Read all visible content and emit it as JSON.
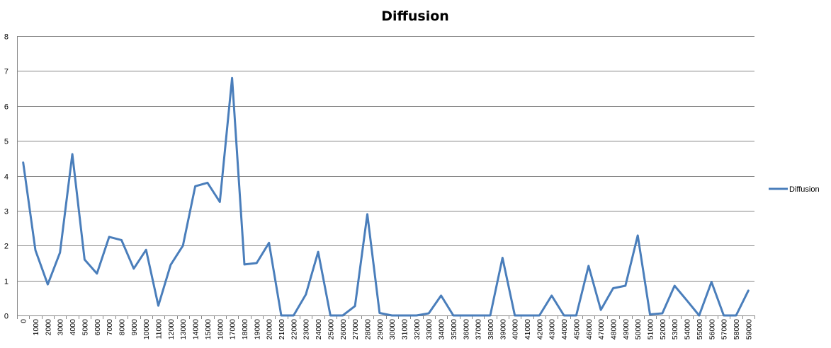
{
  "chart_data": {
    "type": "line",
    "title": "Diffusion",
    "xlabel": "",
    "ylabel": "",
    "ylim": [
      0,
      8
    ],
    "yticks": [
      0,
      1,
      2,
      3,
      4,
      5,
      6,
      7,
      8
    ],
    "grid": true,
    "legend_position": "right",
    "categories": [
      "0",
      "1000",
      "2000",
      "3000",
      "4000",
      "5000",
      "6000",
      "7000",
      "8000",
      "9000",
      "10000",
      "11000",
      "12000",
      "13000",
      "14000",
      "15000",
      "16000",
      "17000",
      "18000",
      "19000",
      "20000",
      "21000",
      "22000",
      "23000",
      "24000",
      "25000",
      "26000",
      "27000",
      "28000",
      "29000",
      "30000",
      "31000",
      "32000",
      "33000",
      "34000",
      "35000",
      "36000",
      "37000",
      "38000",
      "39000",
      "40000",
      "41000",
      "42000",
      "43000",
      "44000",
      "45000",
      "46000",
      "47000",
      "48000",
      "49000",
      "50000",
      "51000",
      "52000",
      "53000",
      "54000",
      "55000",
      "56000",
      "57000",
      "58000",
      "59000"
    ],
    "series": [
      {
        "name": "Diffusion",
        "color": "#4a7ebb",
        "values": [
          4.38,
          1.87,
          0.89,
          1.8,
          4.62,
          1.6,
          1.2,
          2.25,
          2.16,
          1.34,
          1.88,
          0.28,
          1.45,
          2.0,
          3.7,
          3.8,
          3.25,
          6.8,
          1.46,
          1.5,
          2.08,
          0.0,
          0.0,
          0.6,
          1.82,
          0.0,
          0.0,
          0.27,
          2.9,
          0.07,
          0.0,
          0.0,
          0.0,
          0.06,
          0.57,
          0.0,
          0.0,
          0.0,
          0.0,
          1.65,
          0.0,
          0.0,
          0.0,
          0.57,
          0.0,
          0.0,
          1.42,
          0.16,
          0.78,
          0.85,
          2.29,
          0.03,
          0.06,
          0.85,
          0.43,
          0.0,
          0.96,
          0.0,
          0.0,
          0.71
        ]
      }
    ]
  }
}
